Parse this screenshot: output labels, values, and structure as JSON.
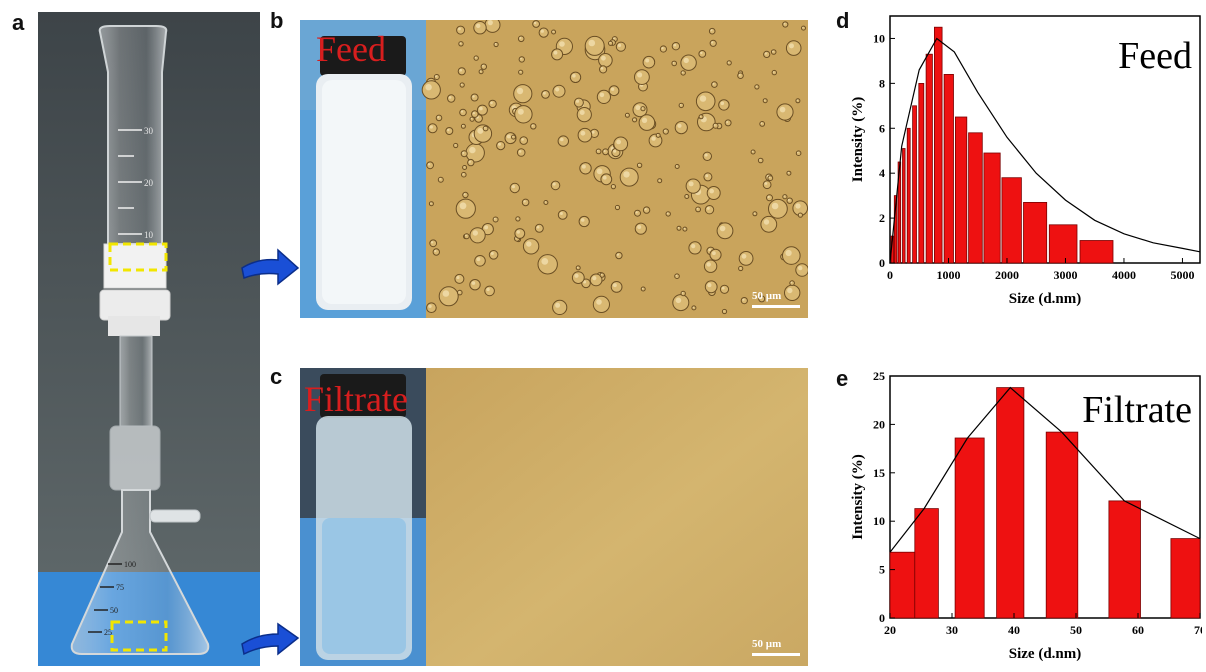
{
  "panels": {
    "a": {
      "letter": "a"
    },
    "b": {
      "letter": "b",
      "label": "Feed",
      "scale_bar": "50 µm"
    },
    "c": {
      "letter": "c",
      "label": "Filtrate",
      "scale_bar": "50 µm"
    },
    "d": {
      "letter": "d"
    },
    "e": {
      "letter": "e"
    }
  },
  "apparatus": {
    "cylinder_marks": [
      "30",
      "20",
      "10"
    ],
    "flask_marks": [
      "100",
      "75",
      "50",
      "25"
    ]
  },
  "colors": {
    "label_red": "#d81e1e",
    "bar_red": "#ee1111",
    "arrow_blue": "#1a4fd6",
    "highlight_yellow": "#f2e600",
    "feed_micrograph_bg": "#c9a45c",
    "filtrate_micrograph_bg": "#cfae68"
  },
  "chart_data": [
    {
      "type": "bar",
      "title": "Feed",
      "xlabel": "Size (d.nm)",
      "ylabel": "Intensity (%)",
      "xlim": [
        0,
        5300
      ],
      "ylim": [
        0,
        11
      ],
      "xticks": [
        0,
        1000,
        2000,
        3000,
        4000,
        5000
      ],
      "yticks": [
        0,
        2,
        4,
        6,
        8,
        10
      ],
      "bars": [
        {
          "x": 40,
          "y": 1.2
        },
        {
          "x": 95,
          "y": 3.0
        },
        {
          "x": 160,
          "y": 4.5
        },
        {
          "x": 235,
          "y": 5.1
        },
        {
          "x": 320,
          "y": 6.0
        },
        {
          "x": 420,
          "y": 7.0
        },
        {
          "x": 535,
          "y": 8.0
        },
        {
          "x": 670,
          "y": 9.3
        },
        {
          "x": 825,
          "y": 10.5
        },
        {
          "x": 1005,
          "y": 8.4
        },
        {
          "x": 1215,
          "y": 6.5
        },
        {
          "x": 1460,
          "y": 5.8
        },
        {
          "x": 1745,
          "y": 4.9
        },
        {
          "x": 2080,
          "y": 3.8
        },
        {
          "x": 2480,
          "y": 2.7
        },
        {
          "x": 2960,
          "y": 1.7
        },
        {
          "x": 3530,
          "y": 1.0
        }
      ],
      "fit_curve": [
        [
          0,
          0
        ],
        [
          200,
          5.2
        ],
        [
          500,
          8.6
        ],
        [
          800,
          10.0
        ],
        [
          1100,
          9.4
        ],
        [
          1500,
          7.6
        ],
        [
          2000,
          5.6
        ],
        [
          2500,
          4.0
        ],
        [
          3000,
          2.8
        ],
        [
          3500,
          1.9
        ],
        [
          4000,
          1.3
        ],
        [
          4500,
          0.9
        ],
        [
          5000,
          0.65
        ],
        [
          5300,
          0.5
        ]
      ]
    },
    {
      "type": "bar",
      "title": "Filtrate",
      "xlabel": "Size (d.nm)",
      "ylabel": "Intensity (%)",
      "xlim": [
        20,
        70
      ],
      "ylim": [
        0,
        25
      ],
      "xticks": [
        20,
        30,
        40,
        50,
        60,
        70
      ],
      "yticks": [
        0,
        5,
        10,
        15,
        20,
        25
      ],
      "bars": [
        {
          "x0": 20,
          "x1": 24,
          "y": 6.8
        },
        {
          "x0": 24,
          "x1": 27.8,
          "y": 11.3
        },
        {
          "x0": 30.5,
          "x1": 35.2,
          "y": 18.6
        },
        {
          "x0": 37.2,
          "x1": 41.6,
          "y": 23.8
        },
        {
          "x0": 45.2,
          "x1": 50.3,
          "y": 19.2
        },
        {
          "x0": 55.3,
          "x1": 60.4,
          "y": 12.1
        },
        {
          "x0": 65.3,
          "x1": 70.0,
          "y": 8.2
        }
      ],
      "fit_curve": [
        [
          20,
          6.8
        ],
        [
          25.5,
          11.3
        ],
        [
          32.5,
          18.6
        ],
        [
          39.4,
          23.8
        ],
        [
          47.7,
          19.2
        ],
        [
          57.8,
          12.1
        ],
        [
          70,
          8.2
        ]
      ]
    }
  ]
}
